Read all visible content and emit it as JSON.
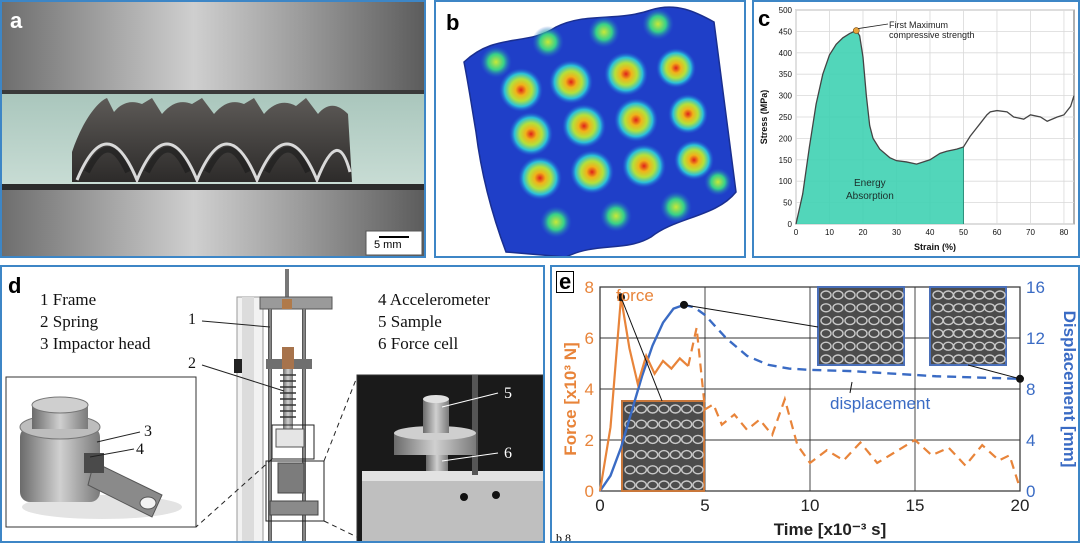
{
  "panels": {
    "a": {
      "label": "a",
      "scale_bar": "5 mm"
    },
    "b": {
      "label": "b"
    },
    "c": {
      "label": "c",
      "annotation_line1": "First Maximum",
      "annotation_line2": "compressive strength",
      "region_label_line1": "Energy",
      "region_label_line2": "Absorption"
    },
    "d": {
      "label": "d",
      "legend_left": [
        "1 Frame",
        "2 Spring",
        "3 Impactor head"
      ],
      "legend_right": [
        "4 Accelerometer",
        "5 Sample",
        "6 Force cell"
      ],
      "callouts": [
        "1",
        "2",
        "3",
        "4",
        "5",
        "6"
      ]
    },
    "e": {
      "label": "e",
      "bottom_fragment": "b  8"
    }
  },
  "chart_data": [
    {
      "type": "line",
      "xlabel": "Strain (%)",
      "ylabel": "Stress (MPa)",
      "xlim": [
        0,
        83
      ],
      "ylim": [
        0,
        500
      ],
      "x_ticks": [
        0,
        10,
        20,
        30,
        40,
        50,
        60,
        70,
        80
      ],
      "y_ticks": [
        0,
        50,
        100,
        150,
        200,
        250,
        300,
        350,
        400,
        450,
        500
      ],
      "x": [
        0,
        2,
        4,
        6,
        8,
        10,
        12,
        14,
        16,
        18,
        19,
        20,
        21,
        22,
        23,
        25,
        28,
        30,
        33,
        36,
        40,
        43,
        45,
        48,
        50,
        52,
        55,
        57,
        58,
        60,
        63,
        65,
        68,
        70,
        73,
        75,
        78,
        80,
        82,
        83
      ],
      "y": [
        0,
        70,
        180,
        280,
        350,
        395,
        420,
        435,
        445,
        452,
        440,
        390,
        300,
        230,
        200,
        175,
        155,
        148,
        145,
        140,
        150,
        165,
        170,
        175,
        180,
        205,
        235,
        255,
        262,
        265,
        262,
        250,
        245,
        255,
        250,
        240,
        250,
        255,
        275,
        300
      ],
      "fill_to_x": 50,
      "fill_color": "#3fd1b3",
      "line_color": "#444444",
      "marker": {
        "x": 18,
        "y": 452,
        "color": "#e8a33a"
      },
      "grid": true
    },
    {
      "type": "line",
      "xlabel": "Time [x10⁻³ s]",
      "ylabel_left": "Force [x10³ N]",
      "ylabel_right": "Displacement [mm]",
      "xlim": [
        0,
        20
      ],
      "ylim_left": [
        0,
        8
      ],
      "ylim_right": [
        0,
        16
      ],
      "x_ticks": [
        "0",
        "5",
        "10",
        "15",
        "20"
      ],
      "y_ticks_left": [
        "0",
        "2",
        "4",
        "6",
        "8"
      ],
      "y_ticks_right": [
        "0",
        "4",
        "8",
        "12",
        "16"
      ],
      "grid": true,
      "series": [
        {
          "name": "force",
          "color": "#e8843a",
          "axis": "left",
          "x": [
            0,
            0.5,
            1.0,
            1.4,
            1.8,
            2.2,
            2.6,
            3.0,
            3.4,
            3.8,
            4.2,
            4.6,
            5.0,
            5.4,
            5.8,
            6.4,
            7.0,
            7.6,
            8.2,
            8.8,
            9.4,
            10.0,
            10.8,
            11.6,
            12.4,
            13.2,
            14.0,
            15.0,
            15.8,
            16.6,
            17.4,
            18.2,
            19.0,
            19.5,
            20.0
          ],
          "y": [
            0,
            2.5,
            7.6,
            5.6,
            4.2,
            5.3,
            4.6,
            5.1,
            4.8,
            5.2,
            4.9,
            6.4,
            3.2,
            3.4,
            2.6,
            3.0,
            2.4,
            2.8,
            2.2,
            3.6,
            1.8,
            1.1,
            1.6,
            1.2,
            1.9,
            1.1,
            1.5,
            2.0,
            1.4,
            1.7,
            1.0,
            1.8,
            1.2,
            1.4,
            0.1
          ]
        },
        {
          "name": "displacement",
          "color": "#3a6bc4",
          "axis": "right",
          "x": [
            0,
            0.5,
            1.0,
            1.5,
            2.0,
            2.5,
            3.0,
            3.5,
            4.0,
            4.5,
            5.0,
            6.0,
            7.0,
            8.0,
            9.0,
            10.0,
            12.0,
            14.0,
            16.0,
            18.0,
            20.0
          ],
          "y": [
            0,
            1.2,
            3.4,
            6.2,
            9.0,
            11.4,
            13.2,
            14.3,
            14.6,
            14.4,
            13.8,
            12.0,
            10.6,
            9.9,
            9.6,
            9.5,
            9.4,
            9.2,
            9.0,
            8.9,
            8.8
          ]
        }
      ],
      "markers": [
        {
          "x": 1.0,
          "y_left": 7.6
        },
        {
          "x": 4.0,
          "y_right": 14.6
        },
        {
          "x": 20.0,
          "y_right": 8.8
        }
      ]
    }
  ]
}
